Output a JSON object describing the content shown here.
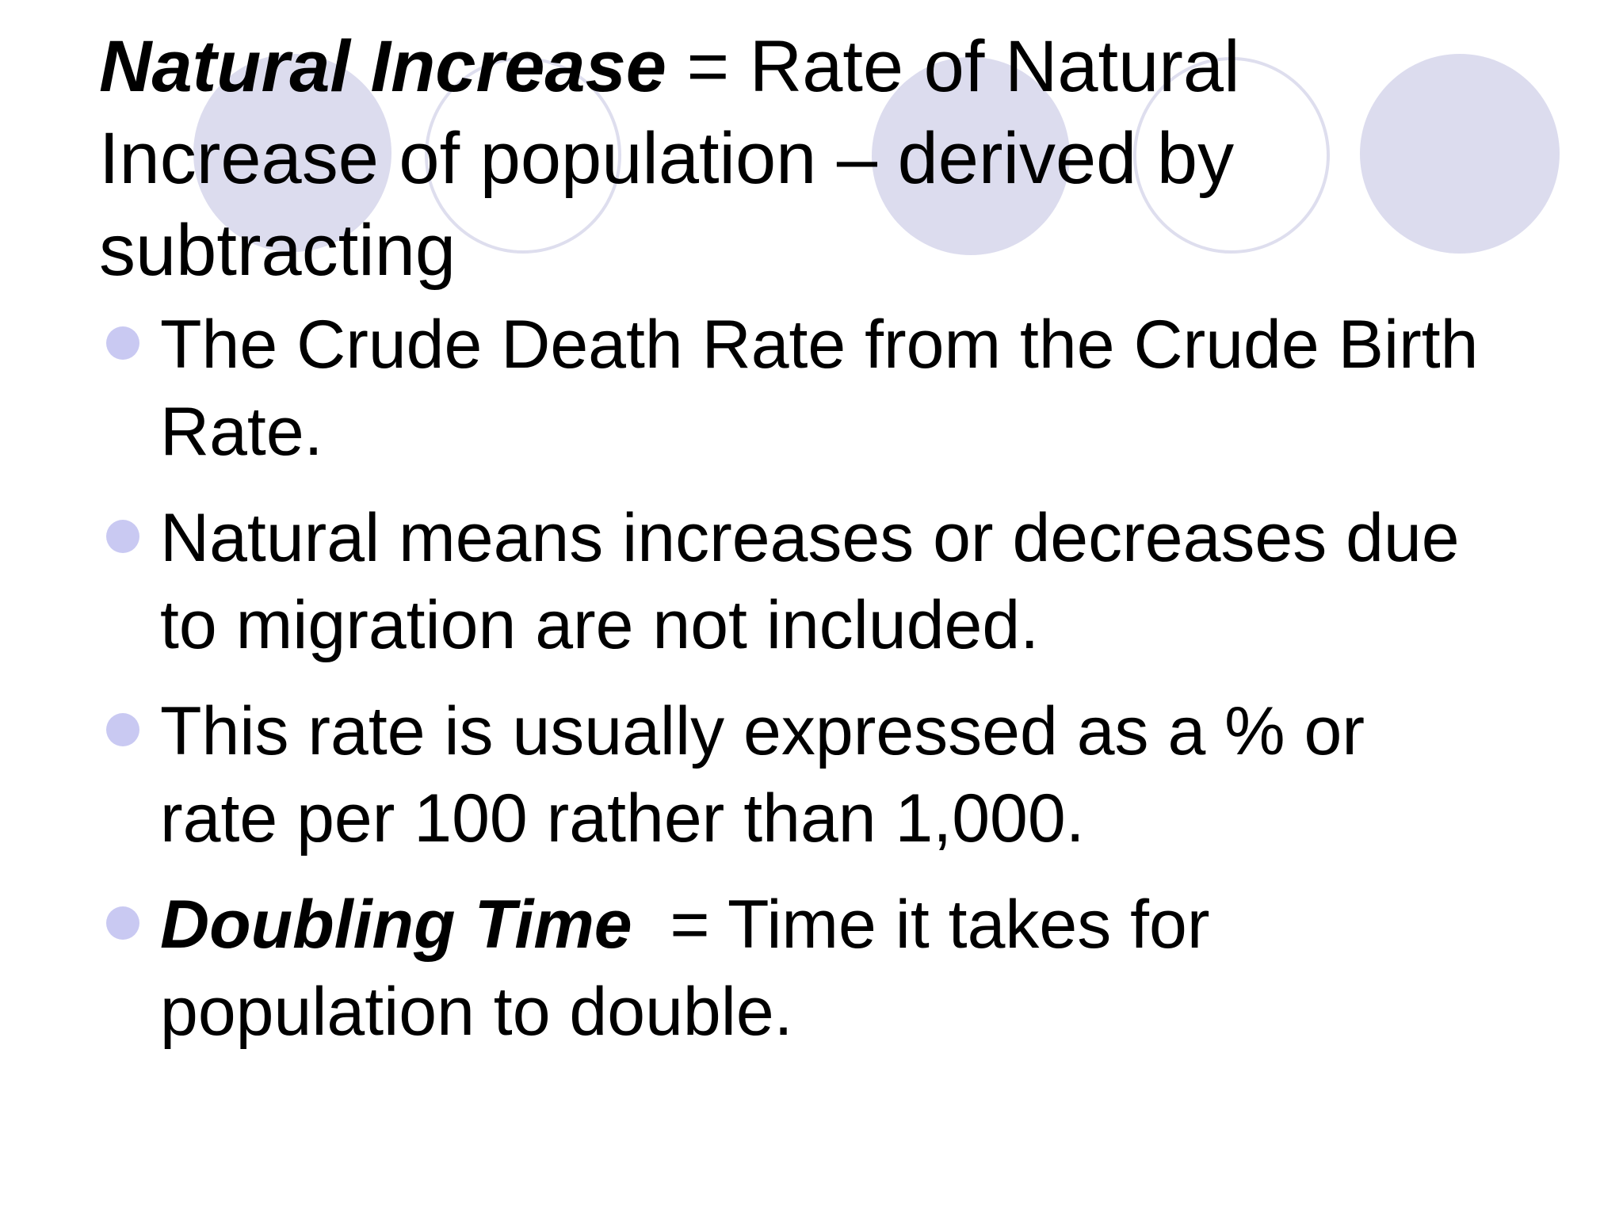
{
  "slide": {
    "title": {
      "term": "Natural Increase",
      "rest": " = Rate of Natural Increase of population – derived by subtracting"
    },
    "bullets": [
      {
        "term": "",
        "text": "The Crude Death Rate from the Crude Birth Rate."
      },
      {
        "term": "",
        "text": "Natural means increases or decreases due to migration are not included."
      },
      {
        "term": "",
        "text": "This rate is usually expressed as a % or rate per 100 rather than 1,000."
      },
      {
        "term": "Doubling Time",
        "text": "  = Time it takes for population to double."
      }
    ],
    "decoration": {
      "circle_fill_color": "#dcdcee",
      "bullet_color": "#c9c9f2"
    }
  }
}
